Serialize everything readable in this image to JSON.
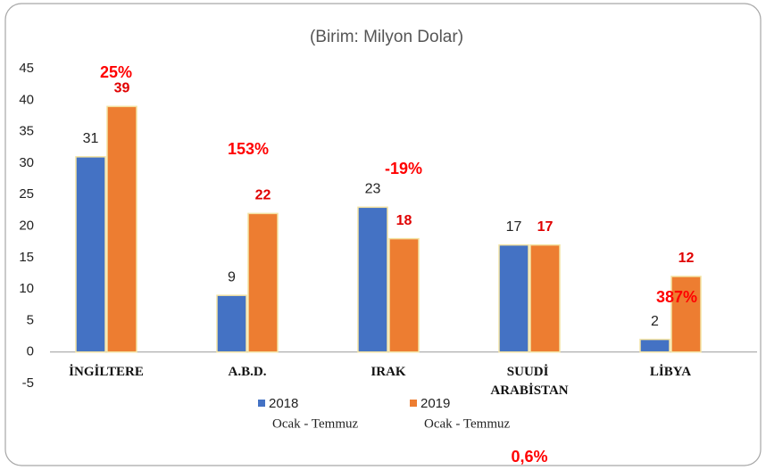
{
  "chart_data": {
    "type": "bar",
    "title": "(Birim: Milyon Dolar)",
    "categories": [
      "İNGİLTERE",
      "A.B.D.",
      "IRAK",
      "SUUDİ ARABİSTAN",
      "LİBYA"
    ],
    "legend_subtitle": "Ocak - Temmuz",
    "series": [
      {
        "name": "2018",
        "color": "#4472c4",
        "label_color": "#222222",
        "values": [
          31,
          9,
          23,
          17,
          2
        ]
      },
      {
        "name": "2019",
        "color": "#ed7d31",
        "label_color": "#e00000",
        "values": [
          39,
          22,
          18,
          17,
          12
        ]
      }
    ],
    "annotations": [
      "25%",
      "153%",
      "-19%",
      "0,6%",
      "387%"
    ],
    "annotation_color": "#ff0000",
    "ylim": [
      -5,
      45
    ],
    "yticks": [
      -5,
      0,
      5,
      10,
      15,
      20,
      25,
      30,
      35,
      40,
      45
    ]
  }
}
